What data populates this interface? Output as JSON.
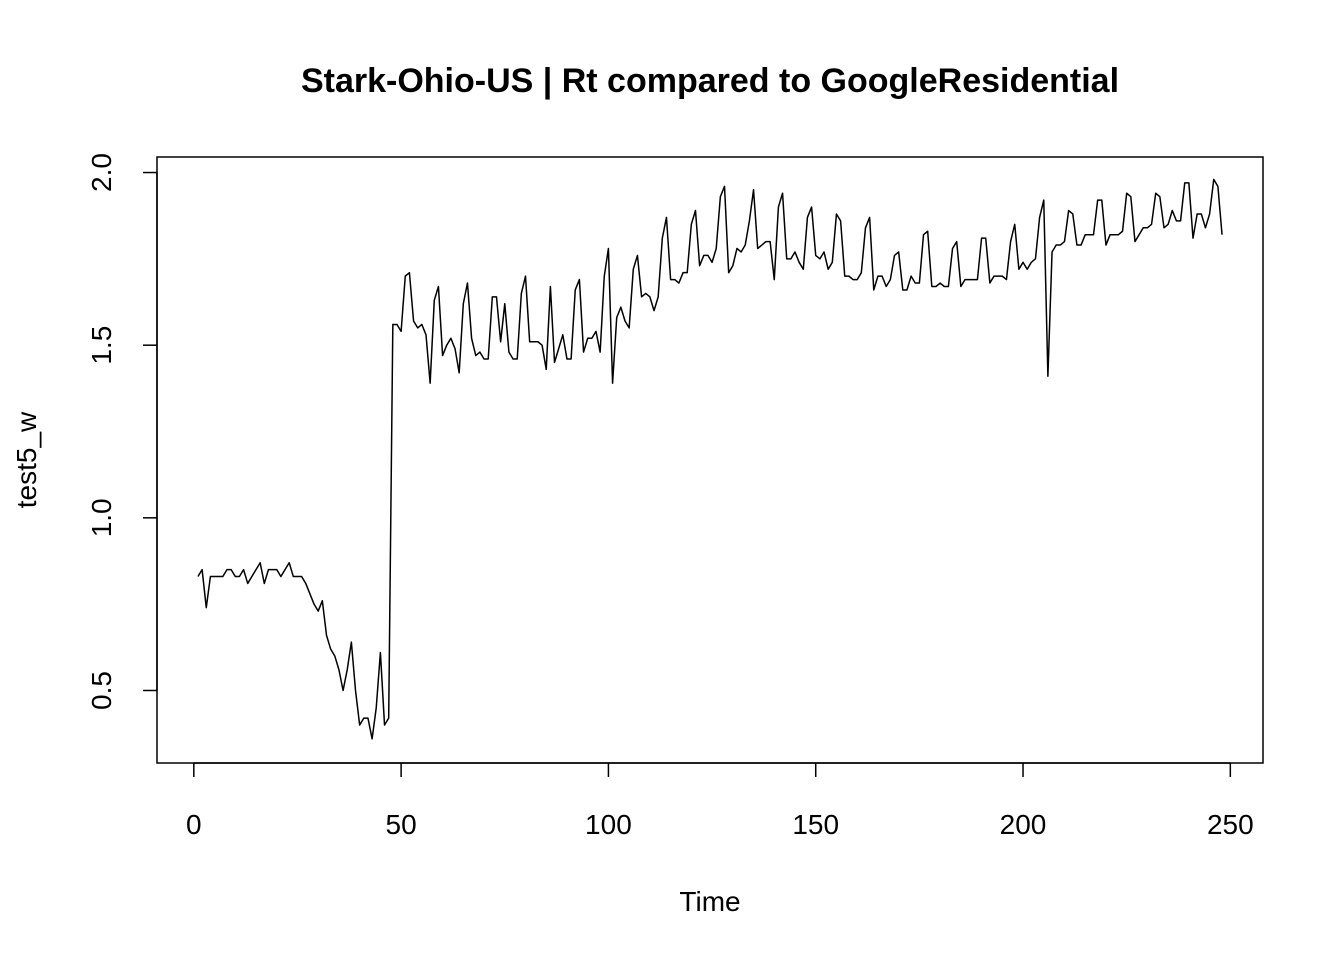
{
  "chart_data": {
    "type": "line",
    "title": "Stark-Ohio-US | Rt compared to GoogleResidential",
    "x_label": "Time",
    "y_label": "test5_w",
    "color": "#000000",
    "x": [
      1,
      2,
      3,
      4,
      5,
      6,
      7,
      8,
      9,
      10,
      11,
      12,
      13,
      14,
      15,
      16,
      17,
      18,
      19,
      20,
      21,
      22,
      23,
      24,
      25,
      26,
      27,
      28,
      29,
      30,
      31,
      32,
      33,
      34,
      35,
      36,
      37,
      38,
      39,
      40,
      41,
      42,
      43,
      44,
      45,
      46,
      47,
      48,
      49,
      50,
      51,
      52,
      53,
      54,
      55,
      56,
      57,
      58,
      59,
      60,
      61,
      62,
      63,
      64,
      65,
      66,
      67,
      68,
      69,
      70,
      71,
      72,
      73,
      74,
      75,
      76,
      77,
      78,
      79,
      80,
      81,
      82,
      83,
      84,
      85,
      86,
      87,
      88,
      89,
      90,
      91,
      92,
      93,
      94,
      95,
      96,
      97,
      98,
      99,
      100,
      101,
      102,
      103,
      104,
      105,
      106,
      107,
      108,
      109,
      110,
      111,
      112,
      113,
      114,
      115,
      116,
      117,
      118,
      119,
      120,
      121,
      122,
      123,
      124,
      125,
      126,
      127,
      128,
      129,
      130,
      131,
      132,
      133,
      134,
      135,
      136,
      137,
      138,
      139,
      140,
      141,
      142,
      143,
      144,
      145,
      146,
      147,
      148,
      149,
      150,
      151,
      152,
      153,
      154,
      155,
      156,
      157,
      158,
      159,
      160,
      161,
      162,
      163,
      164,
      165,
      166,
      167,
      168,
      169,
      170,
      171,
      172,
      173,
      174,
      175,
      176,
      177,
      178,
      179,
      180,
      181,
      182,
      183,
      184,
      185,
      186,
      187,
      188,
      189,
      190,
      191,
      192,
      193,
      194,
      195,
      196,
      197,
      198,
      199,
      200,
      201,
      202,
      203,
      204,
      205,
      206,
      207,
      208,
      209,
      210,
      211,
      212,
      213,
      214,
      215,
      216,
      217,
      218,
      219,
      220,
      221,
      222,
      223,
      224,
      225,
      226,
      227,
      228,
      229,
      230,
      231,
      232,
      233,
      234,
      235,
      236,
      237,
      238,
      239,
      240,
      241,
      242,
      243,
      244,
      245,
      246,
      247,
      248
    ],
    "values": [
      0.83,
      0.85,
      0.74,
      0.83,
      0.83,
      0.83,
      0.83,
      0.85,
      0.85,
      0.83,
      0.83,
      0.85,
      0.81,
      0.83,
      0.85,
      0.87,
      0.81,
      0.85,
      0.85,
      0.85,
      0.83,
      0.85,
      0.87,
      0.83,
      0.83,
      0.83,
      0.81,
      0.78,
      0.75,
      0.73,
      0.76,
      0.66,
      0.62,
      0.6,
      0.56,
      0.5,
      0.56,
      0.64,
      0.5,
      0.4,
      0.42,
      0.42,
      0.36,
      0.45,
      0.61,
      0.4,
      0.42,
      1.56,
      1.56,
      1.54,
      1.7,
      1.71,
      1.57,
      1.55,
      1.56,
      1.53,
      1.39,
      1.63,
      1.67,
      1.47,
      1.5,
      1.52,
      1.49,
      1.42,
      1.62,
      1.68,
      1.52,
      1.47,
      1.48,
      1.46,
      1.46,
      1.64,
      1.64,
      1.51,
      1.62,
      1.48,
      1.46,
      1.46,
      1.65,
      1.7,
      1.51,
      1.51,
      1.51,
      1.5,
      1.43,
      1.67,
      1.45,
      1.49,
      1.53,
      1.46,
      1.46,
      1.66,
      1.69,
      1.48,
      1.52,
      1.52,
      1.54,
      1.48,
      1.7,
      1.78,
      1.39,
      1.58,
      1.61,
      1.57,
      1.55,
      1.72,
      1.76,
      1.64,
      1.65,
      1.64,
      1.6,
      1.64,
      1.81,
      1.87,
      1.69,
      1.69,
      1.68,
      1.71,
      1.71,
      1.85,
      1.89,
      1.73,
      1.76,
      1.76,
      1.74,
      1.78,
      1.93,
      1.96,
      1.71,
      1.73,
      1.78,
      1.77,
      1.79,
      1.86,
      1.95,
      1.78,
      1.79,
      1.8,
      1.8,
      1.69,
      1.9,
      1.94,
      1.75,
      1.75,
      1.77,
      1.74,
      1.72,
      1.87,
      1.9,
      1.76,
      1.75,
      1.77,
      1.72,
      1.74,
      1.88,
      1.86,
      1.7,
      1.7,
      1.69,
      1.69,
      1.71,
      1.84,
      1.87,
      1.66,
      1.7,
      1.7,
      1.67,
      1.69,
      1.76,
      1.77,
      1.66,
      1.66,
      1.7,
      1.68,
      1.68,
      1.82,
      1.83,
      1.67,
      1.67,
      1.68,
      1.67,
      1.67,
      1.78,
      1.8,
      1.67,
      1.69,
      1.69,
      1.69,
      1.69,
      1.81,
      1.81,
      1.68,
      1.7,
      1.7,
      1.7,
      1.69,
      1.8,
      1.85,
      1.72,
      1.74,
      1.72,
      1.74,
      1.75,
      1.87,
      1.92,
      1.41,
      1.77,
      1.79,
      1.79,
      1.8,
      1.89,
      1.88,
      1.79,
      1.79,
      1.82,
      1.82,
      1.82,
      1.92,
      1.92,
      1.79,
      1.82,
      1.82,
      1.82,
      1.83,
      1.94,
      1.93,
      1.8,
      1.82,
      1.84,
      1.84,
      1.85,
      1.94,
      1.93,
      1.84,
      1.85,
      1.89,
      1.86,
      1.86,
      1.97,
      1.97,
      1.81,
      1.88,
      1.88,
      1.84,
      1.88,
      1.98,
      1.96,
      1.82
    ],
    "xlim": [
      -8.88,
      257.88
    ],
    "ylim": [
      0.29,
      2.045
    ],
    "xticks": [
      0,
      50,
      100,
      150,
      200,
      250
    ],
    "yticks": [
      0.5,
      {
        "value": 1,
        "label": "1.0"
      },
      1.5,
      {
        "value": 2,
        "label": "2.0"
      }
    ]
  }
}
